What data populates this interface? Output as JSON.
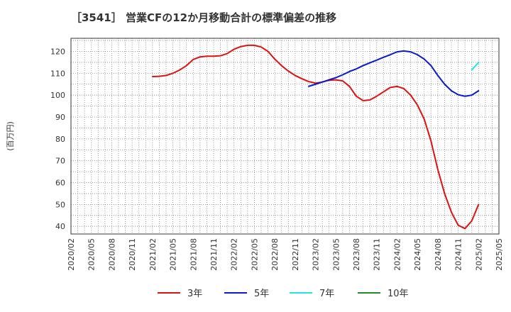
{
  "chart_data": {
    "type": "line",
    "title": "［3541］ 営業CFの12か月移動合計の標準偏差の推移",
    "ylabel": "(百万円)",
    "xlabel": "",
    "ylim": [
      36.5,
      126
    ],
    "yticks": [
      40,
      50,
      60,
      70,
      80,
      90,
      100,
      110,
      120
    ],
    "xticks": [
      "2020/02",
      "2020/05",
      "2020/08",
      "2020/11",
      "2021/02",
      "2021/05",
      "2021/08",
      "2021/11",
      "2022/02",
      "2022/05",
      "2022/08",
      "2022/11",
      "2023/02",
      "2023/05",
      "2023/08",
      "2023/11",
      "2024/02",
      "2024/05",
      "2024/08",
      "2024/11",
      "2025/02",
      "2025/05"
    ],
    "grid": true,
    "legend": "bottom",
    "series": [
      {
        "name": "3年",
        "color": "#dd1111",
        "x": [
          "2021/02",
          "2021/03",
          "2021/04",
          "2021/05",
          "2021/06",
          "2021/07",
          "2021/08",
          "2021/09",
          "2021/10",
          "2021/11",
          "2021/12",
          "2022/01",
          "2022/02",
          "2022/03",
          "2022/04",
          "2022/05",
          "2022/06",
          "2022/07",
          "2022/08",
          "2022/09",
          "2022/10",
          "2022/11",
          "2022/12",
          "2023/01",
          "2023/02",
          "2023/03",
          "2023/04",
          "2023/05",
          "2023/06",
          "2023/07",
          "2023/08",
          "2023/09",
          "2023/10",
          "2023/11",
          "2023/12",
          "2024/01",
          "2024/02",
          "2024/03",
          "2024/04",
          "2024/05",
          "2024/06",
          "2024/07",
          "2024/08",
          "2024/09",
          "2024/10",
          "2024/11",
          "2024/12",
          "2025/01",
          "2025/02"
        ],
        "values": [
          108.5,
          108.6,
          109.0,
          110.0,
          111.5,
          113.5,
          116.3,
          117.5,
          117.8,
          117.8,
          118.0,
          119.0,
          121.0,
          122.2,
          122.8,
          122.8,
          122.0,
          120.0,
          116.5,
          113.5,
          111.0,
          109.0,
          107.5,
          106.2,
          105.5,
          106.0,
          106.8,
          107.0,
          106.5,
          104.0,
          99.5,
          97.5,
          97.8,
          99.5,
          101.5,
          103.5,
          104.0,
          103.0,
          100.0,
          95.5,
          89.0,
          79.0,
          66.0,
          55.0,
          46.5,
          40.5,
          39.0,
          42.5,
          50.0
        ]
      },
      {
        "name": "5年",
        "color": "#0a1ac8",
        "x": [
          "2023/01",
          "2023/02",
          "2023/03",
          "2023/04",
          "2023/05",
          "2023/06",
          "2023/07",
          "2023/08",
          "2023/09",
          "2023/10",
          "2023/11",
          "2023/12",
          "2024/01",
          "2024/02",
          "2024/03",
          "2024/04",
          "2024/05",
          "2024/06",
          "2024/07",
          "2024/08",
          "2024/09",
          "2024/10",
          "2024/11",
          "2024/12",
          "2025/01",
          "2025/02"
        ],
        "values": [
          104.0,
          105.0,
          106.0,
          107.0,
          108.0,
          109.3,
          110.8,
          112.0,
          113.5,
          114.8,
          116.0,
          117.3,
          118.5,
          119.8,
          120.2,
          119.8,
          118.5,
          116.5,
          113.5,
          109.0,
          105.0,
          102.0,
          100.2,
          99.5,
          100.0,
          102.0
        ]
      },
      {
        "name": "7年",
        "color": "#22e6e6",
        "x": [
          "2025/01",
          "2025/02"
        ],
        "values": [
          111.5,
          115.0
        ]
      },
      {
        "name": "10年",
        "color": "#228b22",
        "x": [],
        "values": []
      }
    ]
  }
}
